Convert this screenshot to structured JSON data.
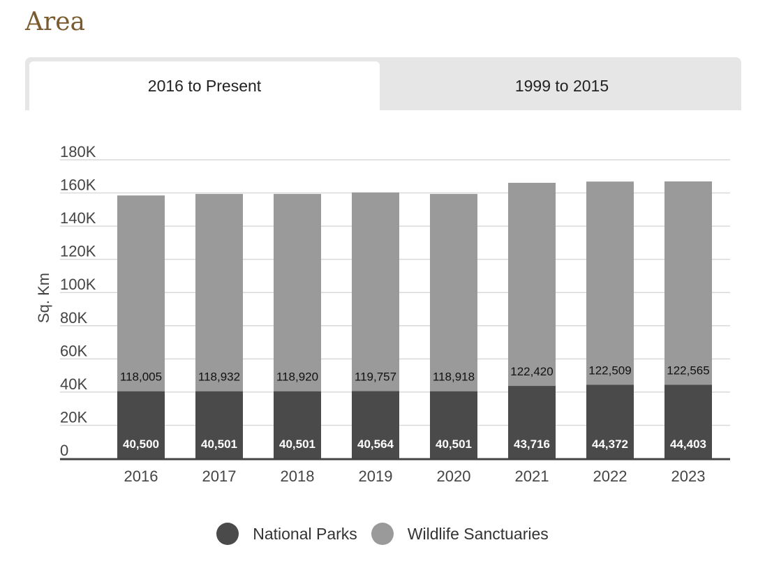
{
  "page": {
    "title": "Area"
  },
  "tabs": [
    {
      "label": "2016 to Present",
      "active": true
    },
    {
      "label": "1999 to 2015",
      "active": false
    }
  ],
  "colors": {
    "national_parks": "#4a4a4a",
    "wildlife_sanctuaries": "#9a9a9a",
    "gridline": "#d9d9d9",
    "axis": "#444444"
  },
  "chart_data": {
    "type": "bar",
    "stacked": true,
    "categories": [
      "2016",
      "2017",
      "2018",
      "2019",
      "2020",
      "2021",
      "2022",
      "2023"
    ],
    "series": [
      {
        "name": "National Parks",
        "values": [
          40500,
          40501,
          40501,
          40564,
          40501,
          43716,
          44372,
          44403
        ]
      },
      {
        "name": "Wildlife Sanctuaries",
        "values": [
          118005,
          118932,
          118920,
          119757,
          118918,
          122420,
          122509,
          122565
        ]
      }
    ],
    "data_labels": {
      "National Parks": [
        "40,500",
        "40,501",
        "40,501",
        "40,564",
        "40,501",
        "43,716",
        "44,372",
        "44,403"
      ],
      "Wildlife Sanctuaries": [
        "118,005",
        "118,932",
        "118,920",
        "119,757",
        "118,918",
        "122,420",
        "122,509",
        "122,565"
      ]
    },
    "ylabel": "Sq. Km",
    "ylim": [
      0,
      180000
    ],
    "yticks": [
      0,
      20000,
      40000,
      60000,
      80000,
      100000,
      120000,
      140000,
      160000,
      180000
    ],
    "ytick_labels": [
      "0",
      "20K",
      "40K",
      "60K",
      "80K",
      "100K",
      "120K",
      "140K",
      "160K",
      "180K"
    ],
    "grid": true,
    "legend_position": "bottom"
  }
}
